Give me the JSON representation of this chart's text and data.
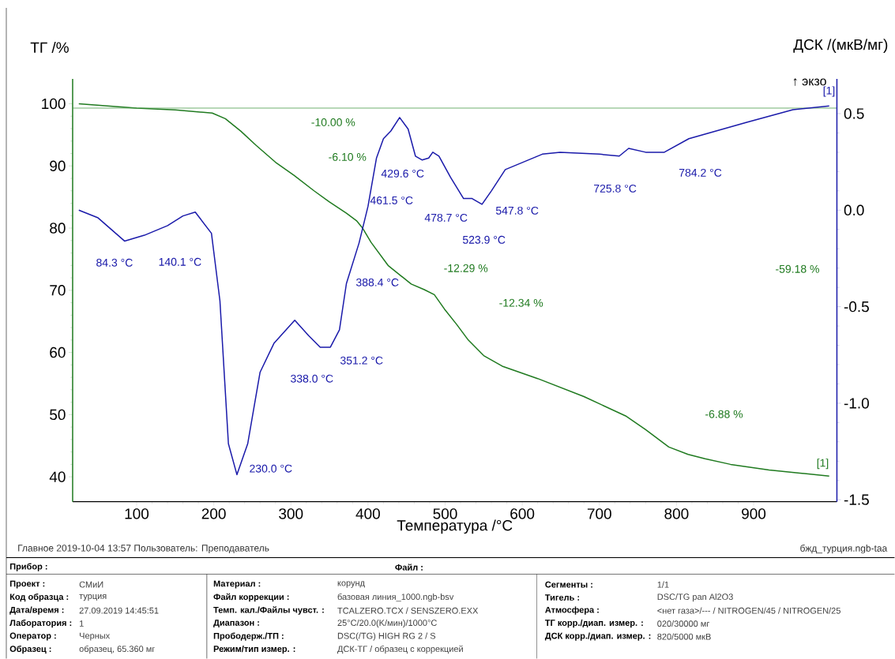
{
  "chart_data": {
    "type": "line",
    "xlabel": "Температура /°C",
    "ylabel": "ТГ /%",
    "y2label": "ДСК /(мкВ/мг)",
    "xlim": [
      17,
      1008
    ],
    "xticks": [
      100,
      200,
      300,
      400,
      500,
      600,
      700,
      800,
      900
    ],
    "ylim": [
      36,
      104
    ],
    "yticks": [
      40,
      50,
      60,
      70,
      80,
      90,
      100
    ],
    "y2lim": [
      -1.51,
      0.68
    ],
    "y2ticks": [
      {
        "value": -1.5,
        "label": "-1.5"
      },
      {
        "value": -1,
        "label": "-1.0"
      },
      -0.5,
      {
        "value": 0,
        "label": "0.0"
      },
      0.5
    ],
    "series": [
      {
        "axis": "y",
        "color": "#1f7a1f",
        "x": [
          25,
          100,
          150,
          198,
          215,
          235,
          255,
          280,
          304,
          330,
          350,
          372,
          385,
          393,
          404,
          426,
          456,
          473,
          486,
          499,
          515,
          530,
          550,
          574,
          620,
          680,
          734,
          760,
          790,
          815,
          837,
          870,
          920,
          960,
          998
        ],
        "values": [
          100.0,
          99.3,
          99.0,
          98.5,
          97.6,
          95.6,
          93.3,
          90.6,
          88.5,
          86.0,
          84.2,
          82.4,
          81.2,
          80.0,
          77.7,
          74.0,
          71.0,
          70.1,
          69.3,
          67.0,
          64.5,
          62.0,
          59.5,
          57.8,
          55.8,
          52.9,
          49.8,
          47.6,
          44.8,
          43.6,
          42.9,
          42.0,
          41.1,
          40.6,
          40.1
        ]
      },
      {
        "axis": "y2",
        "color": "#1a1aaa",
        "x": [
          25,
          50,
          84.3,
          110,
          140.1,
          160,
          176,
          197,
          208,
          219,
          230,
          244,
          260,
          278,
          305,
          323,
          338,
          351.2,
          363,
          372,
          388.4,
          400,
          411,
          420,
          429.6,
          441,
          452,
          461.5,
          470,
          478.7,
          484,
          492,
          507,
          523.9,
          535,
          547.8,
          560,
          578,
          626,
          649,
          700,
          725.8,
          738,
          760,
          784.2,
          816,
          891,
          951,
          998
        ],
        "values": [
          0.0,
          -0.04,
          -0.16,
          -0.13,
          -0.08,
          -0.03,
          -0.01,
          -0.12,
          -0.47,
          -1.21,
          -1.37,
          -1.21,
          -0.84,
          -0.69,
          -0.57,
          -0.65,
          -0.71,
          -0.71,
          -0.62,
          -0.38,
          -0.17,
          0.02,
          0.27,
          0.37,
          0.41,
          0.48,
          0.42,
          0.28,
          0.26,
          0.27,
          0.3,
          0.28,
          0.17,
          0.06,
          0.06,
          0.03,
          0.1,
          0.21,
          0.29,
          0.3,
          0.29,
          0.28,
          0.32,
          0.3,
          0.3,
          0.37,
          0.455,
          0.52,
          0.54
        ]
      }
    ],
    "ref_lines": [
      {
        "axis": "y",
        "value": 99.3,
        "color": "#4a9a4a"
      }
    ],
    "annotations": [
      "-10.00 %",
      "-6.10 %",
      "-12.29 %",
      "-12.34 %",
      "-6.88 %",
      "-59.18 %",
      "[1]",
      "[1]",
      "84.3 °C",
      "140.1 °C",
      "230.0 °C",
      "338.0 °C",
      "351.2 °C",
      "388.4 °C",
      "429.6 °C",
      "461.5 °C",
      "478.7 °C",
      "523.9 °C",
      "547.8 °C",
      "725.8 °C",
      "784.2 °C",
      "↑ экзо",
      "Главное   2019-10-04 13:57   Пользователь: Преподаватель",
      "бжд_турция.ngb-taa",
      "Прибор :",
      "Файл :",
      "Проект :",
      "СМиИ",
      "Код образца :",
      "турция",
      "Дата/время :",
      "27.09.2019 14:45:51",
      "Лаборатория :",
      "1",
      "Оператор :",
      "Черных",
      "Образец :",
      "образец, 65.360 мг",
      "Материал :",
      "корунд",
      "Файл коррекции :",
      "базовая линия_1000.ngb-bsv",
      "Темп. кал./Файлы чувст. :",
      "TCALZERO.TCX / SENSZERO.EXX",
      "Диапазон :",
      "25°C/20.0(K/мин)/1000°C",
      "Прободерж./ТП :",
      "DSC(/TG) HIGH RG 2 / S",
      "Режим/тип измер. :",
      "ДСК-ТГ / образец с коррекцией",
      "Сегменты :",
      "1/1",
      "Тигель :",
      "DSC/TG pan Al2O3",
      "Атмосфера :",
      "<нет газа>/--- / NITROGEN/45 / NITROGEN/25",
      "ТГ корр./диап. измер. :",
      "020/30000 мг",
      "ДСК корр./диап. измер. :",
      "820/5000 мкВ"
    ]
  }
}
